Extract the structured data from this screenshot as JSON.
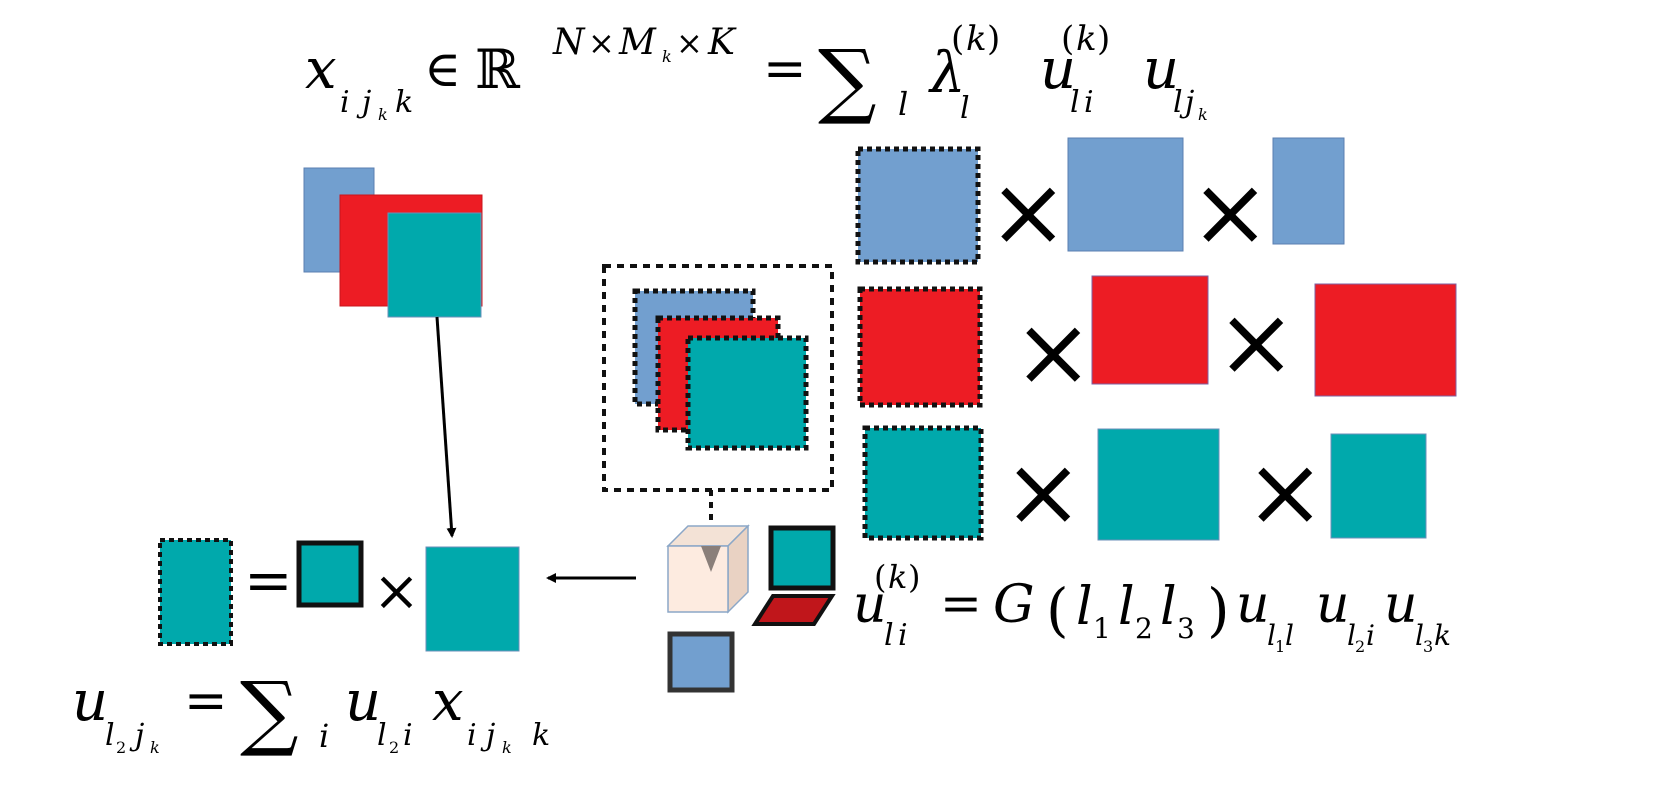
{
  "colors": {
    "blue": "#729fcf",
    "red": "#ed1c24",
    "teal": "#00a9ac",
    "cube_face": "#fdebe0",
    "cube_side": "#e9d2c3",
    "slab_red": "#c0161b",
    "outline": "#222222"
  },
  "icons": {
    "multiply": "multiply-icon",
    "arrow": "arrow-icon",
    "cube": "cube-icon"
  },
  "equations": {
    "top": "x_{i j_k k} ∈ ℝ^{N×M_k×K} = Σ_l λ_l^{(k)} u_{li}^{(k)} u_{l j_k}",
    "right": "u_{li}^{(k)} = G(l_1 l_2 l_3) u_{l_1 l} u_{l_2 i} u_{l_3 k}",
    "bottom": "u_{l_2 j_k} = Σ_i u_{l_2 i} x_{i j_k k}"
  }
}
